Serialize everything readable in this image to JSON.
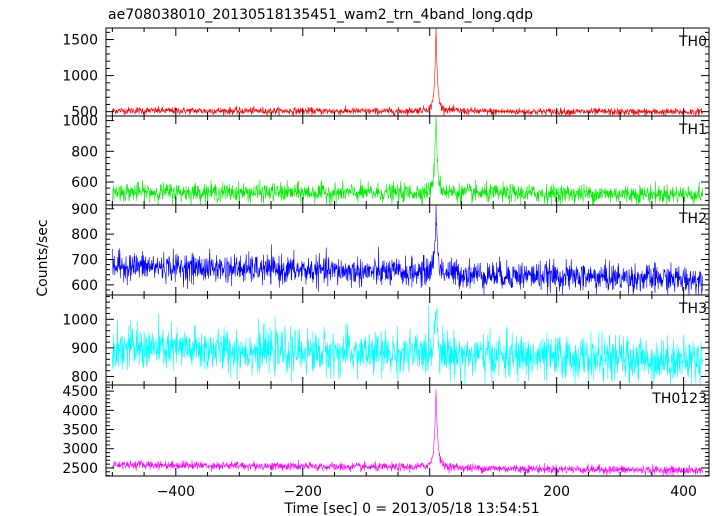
{
  "chart_data": {
    "type": "line",
    "title": "ae708038010_20130518135451_wam2_trn_4band_long.qdp",
    "xlabel": "Time [sec] 0 = 2013/05/18 13:54:51",
    "ylabel": "Counts/sec",
    "xlim": [
      -510,
      440
    ],
    "xticks": [
      -400,
      -200,
      0,
      200,
      400
    ],
    "panels": [
      {
        "name": "TH0",
        "color": "#ff0000",
        "ylim": [
          440,
          1660
        ],
        "yticks": [
          500,
          1000,
          1500
        ],
        "baseline": 515,
        "noise": 25,
        "trend": -20,
        "peak": 1650,
        "peak_time": 10,
        "peak_width": 2.2,
        "series": {
          "x": [
            -500,
            -300,
            -100,
            -20,
            0,
            5,
            10,
            15,
            30,
            100,
            300,
            430
          ],
          "y": [
            515,
            515,
            515,
            540,
            640,
            950,
            1650,
            950,
            560,
            510,
            500,
            495
          ]
        }
      },
      {
        "name": "TH1",
        "color": "#00ee00",
        "ylim": [
          450,
          1030
        ],
        "yticks": [
          600,
          800,
          1000
        ],
        "baseline": 535,
        "noise": 30,
        "trend": -15,
        "peak": 1020,
        "peak_time": 10,
        "peak_width": 2.4,
        "series": {
          "x": [
            -500,
            -300,
            -100,
            -20,
            0,
            5,
            10,
            15,
            30,
            100,
            300,
            430
          ],
          "y": [
            530,
            535,
            535,
            555,
            610,
            780,
            1020,
            790,
            570,
            530,
            520,
            515
          ]
        }
      },
      {
        "name": "TH2",
        "color": "#0000ff",
        "ylim": [
          560,
          915
        ],
        "yticks": [
          600,
          700,
          800,
          900
        ],
        "baseline": 675,
        "noise": 28,
        "trend": -55,
        "peak": 905,
        "peak_time": 10,
        "peak_width": 2.6,
        "series": {
          "x": [
            -500,
            -300,
            -100,
            -20,
            0,
            5,
            10,
            15,
            30,
            100,
            300,
            430
          ],
          "y": [
            670,
            680,
            675,
            690,
            730,
            810,
            905,
            820,
            700,
            665,
            640,
            625
          ]
        }
      },
      {
        "name": "TH3",
        "color": "#00ffff",
        "ylim": [
          770,
          1085
        ],
        "yticks": [
          800,
          900,
          1000
        ],
        "baseline": 900,
        "noise": 38,
        "trend": -45,
        "peak": 1070,
        "peak_time": 10,
        "peak_width": 3.2,
        "series": {
          "x": [
            -500,
            -300,
            -100,
            -20,
            0,
            5,
            10,
            15,
            30,
            100,
            300,
            430
          ],
          "y": [
            890,
            905,
            900,
            910,
            945,
            1010,
            1070,
            1020,
            915,
            890,
            870,
            850
          ]
        }
      },
      {
        "name": "TH0123",
        "color": "#ff00ff",
        "ylim": [
          2290,
          4660
        ],
        "yticks": [
          2500,
          3000,
          3500,
          4000,
          4500
        ],
        "baseline": 2590,
        "noise": 55,
        "trend": -160,
        "peak": 4600,
        "peak_time": 10,
        "peak_width": 2.5,
        "series": {
          "x": [
            -500,
            -300,
            -100,
            -20,
            0,
            5,
            10,
            15,
            30,
            100,
            300,
            430
          ],
          "y": [
            2580,
            2600,
            2590,
            2650,
            2850,
            3600,
            4600,
            3650,
            2700,
            2560,
            2470,
            2430
          ]
        }
      }
    ]
  }
}
